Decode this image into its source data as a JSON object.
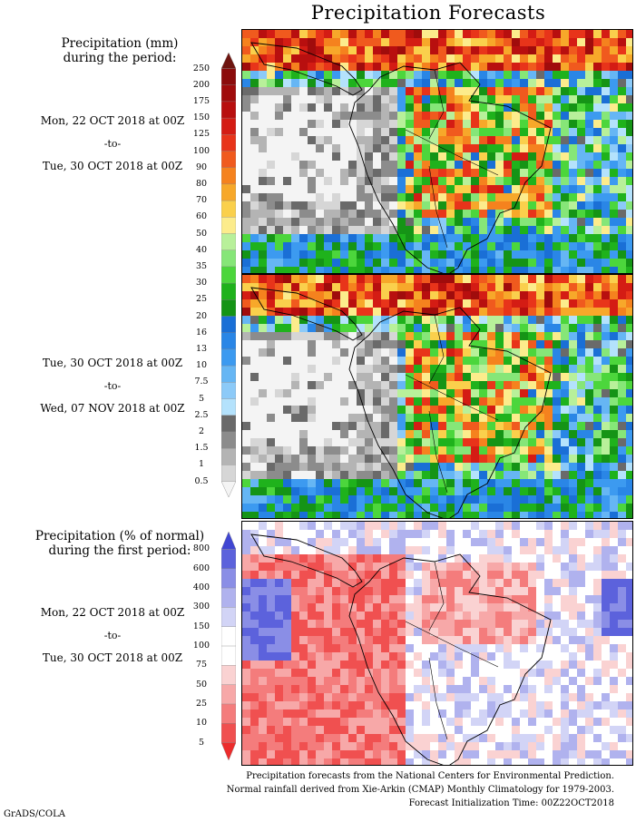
{
  "title": "Precipitation Forecasts",
  "period1": {
    "header_line1": "Precipitation (mm)",
    "header_line2": "during the period:",
    "start": "Mon, 22 OCT 2018 at 00Z",
    "sep": "-to-",
    "end": "Tue, 30 OCT 2018 at 00Z"
  },
  "period2": {
    "start": "Tue, 30 OCT 2018 at 00Z",
    "sep": "-to-",
    "end": "Wed, 07 NOV 2018 at 00Z"
  },
  "anomaly": {
    "header_line1": "Precipitation (% of normal)",
    "header_line2": "during the first period:",
    "start": "Mon, 22 OCT 2018 at 00Z",
    "sep": "-to-",
    "end": "Tue, 30 OCT 2018 at 00Z"
  },
  "mm_scale": {
    "ticks": [
      "250",
      "200",
      "175",
      "150",
      "125",
      "100",
      "90",
      "80",
      "70",
      "60",
      "50",
      "40",
      "35",
      "30",
      "25",
      "20",
      "16",
      "13",
      "10",
      "7.5",
      "5",
      "2.5",
      "2",
      "1.5",
      "1",
      "0.5"
    ],
    "colors": [
      "#6e1510",
      "#8c0c0c",
      "#a00c0c",
      "#b80f0f",
      "#d41c14",
      "#e8341a",
      "#f05a1e",
      "#f5821e",
      "#f7a82a",
      "#fad04c",
      "#fcec8c",
      "#b8f09a",
      "#86e678",
      "#4cd63c",
      "#1fb21c",
      "#159416",
      "#1a6fd6",
      "#2a86e6",
      "#3c9af0",
      "#66b6f4",
      "#8ccaf8",
      "#b4e2fc",
      "#6a6a6a",
      "#8c8c8c",
      "#b4b4b4",
      "#d6d6d6",
      "#f4f4f4"
    ]
  },
  "pct_scale": {
    "ticks": [
      "800",
      "600",
      "400",
      "300",
      "150",
      "100",
      "75",
      "50",
      "25",
      "10",
      "5"
    ],
    "colors": [
      "#4046d2",
      "#5c62dc",
      "#8a8ee6",
      "#b0b2ee",
      "#d2d4f6",
      "#ffffff",
      "#ffffff",
      "#fad2d2",
      "#f7a8a8",
      "#f47c7c",
      "#f05050",
      "#ec2c2c"
    ]
  },
  "footer": {
    "line1": "Precipitation forecasts from the National Centers for Environmental Prediction.",
    "line2": "Normal rainfall derived from Xie-Arkin (CMAP) Monthly Climatology for 1979-2003.",
    "line3": "Forecast Initialization Time: 00Z22OCT2018"
  },
  "credit": "GrADS/COLA"
}
